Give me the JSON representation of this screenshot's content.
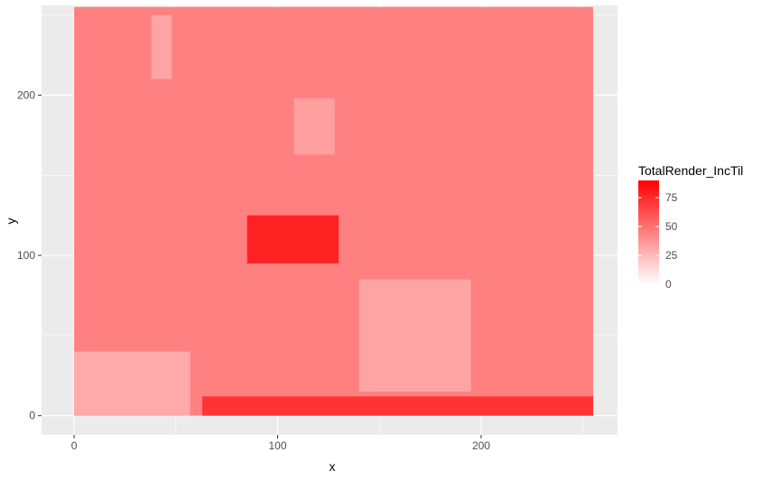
{
  "chart_data": {
    "type": "heatmap",
    "title": "",
    "xlabel": "x",
    "ylabel": "y",
    "xlim": [
      -16,
      267
    ],
    "ylim": [
      -12,
      256
    ],
    "x_ticks": [
      0,
      100,
      200
    ],
    "y_ticks": [
      0,
      100,
      200
    ],
    "x_range_data": [
      0,
      255
    ],
    "y_range_data": [
      0,
      255
    ],
    "grid": true,
    "panel_background": "#ebebeb",
    "grid_color": "#ffffff",
    "legend": {
      "title": "TotalRender_IncTil",
      "position": "right",
      "ticks": [
        0,
        25,
        50,
        75
      ],
      "limits": [
        0,
        90
      ],
      "low_color": "#ffffff",
      "high_color": "#ff0000"
    },
    "fill_summary": {
      "typical_value": 45,
      "background_range": [
        35,
        55
      ],
      "max_value": 90,
      "regions": [
        {
          "label": "light block bottom-left",
          "x": [
            0,
            57
          ],
          "y": [
            0,
            40
          ],
          "value": 30
        },
        {
          "label": "light block bottom-center",
          "x": [
            140,
            195
          ],
          "y": [
            15,
            85
          ],
          "value": 32
        },
        {
          "label": "dark band bottom",
          "x": [
            63,
            255
          ],
          "y": [
            0,
            12
          ],
          "value": 72
        },
        {
          "label": "dark arc center",
          "x": [
            85,
            130
          ],
          "y": [
            95,
            125
          ],
          "value": 78
        },
        {
          "label": "light square top-left",
          "x": [
            38,
            48
          ],
          "y": [
            210,
            250
          ],
          "value": 32
        },
        {
          "label": "light building center-top",
          "x": [
            108,
            128
          ],
          "y": [
            163,
            198
          ],
          "value": 34
        }
      ]
    }
  }
}
